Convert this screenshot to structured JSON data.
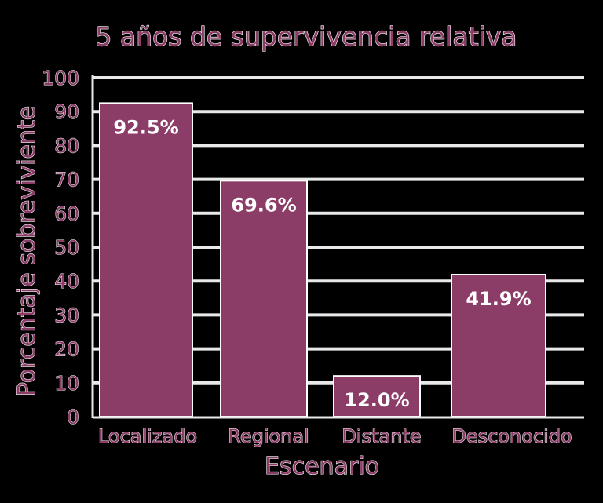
{
  "chart_data": {
    "type": "bar",
    "title": "5 años de supervivencia relativa",
    "xlabel": "Escenario",
    "ylabel": "Porcentaje sobreviviente",
    "categories": [
      "Localizado",
      "Regional",
      "Distante",
      "Desconocido"
    ],
    "values": [
      92.5,
      69.6,
      12.0,
      41.9
    ],
    "data_labels": [
      "92.5%",
      "69.6%",
      "12.0%",
      "41.9%"
    ],
    "ylim": [
      0,
      100
    ],
    "yticks": [
      0,
      10,
      20,
      30,
      40,
      50,
      60,
      70,
      80,
      90,
      100
    ],
    "grid": true,
    "legend": "none",
    "colors": {
      "bar": "#8b3c67",
      "text": "#8b3c67",
      "grid": "#e9e9e9",
      "background": "#000000"
    }
  }
}
